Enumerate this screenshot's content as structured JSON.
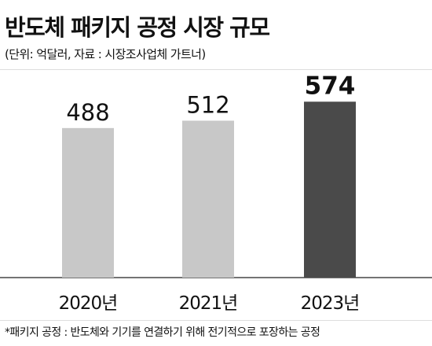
{
  "title": "반도체 패키지 공정 시장 규모",
  "subtitle": "(단위: 억달러, 자료 : 시장조사업체 가트너)",
  "footnote": "*패키지 공정 : 반도체와 기기를 연결하기 위해 전기적으로 포장하는 공정",
  "chart_data": {
    "type": "bar",
    "categories": [
      "2020년",
      "2021년",
      "2023년"
    ],
    "values": [
      488,
      512,
      574
    ],
    "data_labels": [
      "488",
      "512",
      "574"
    ],
    "bar_colors": [
      "#c8c8c8",
      "#c8c8c8",
      "#4a4a4a"
    ],
    "label_weights": [
      "normal",
      "normal",
      "bold"
    ],
    "ylim": [
      0,
      680
    ],
    "grid": false,
    "title": "",
    "xlabel": "",
    "ylabel": ""
  }
}
